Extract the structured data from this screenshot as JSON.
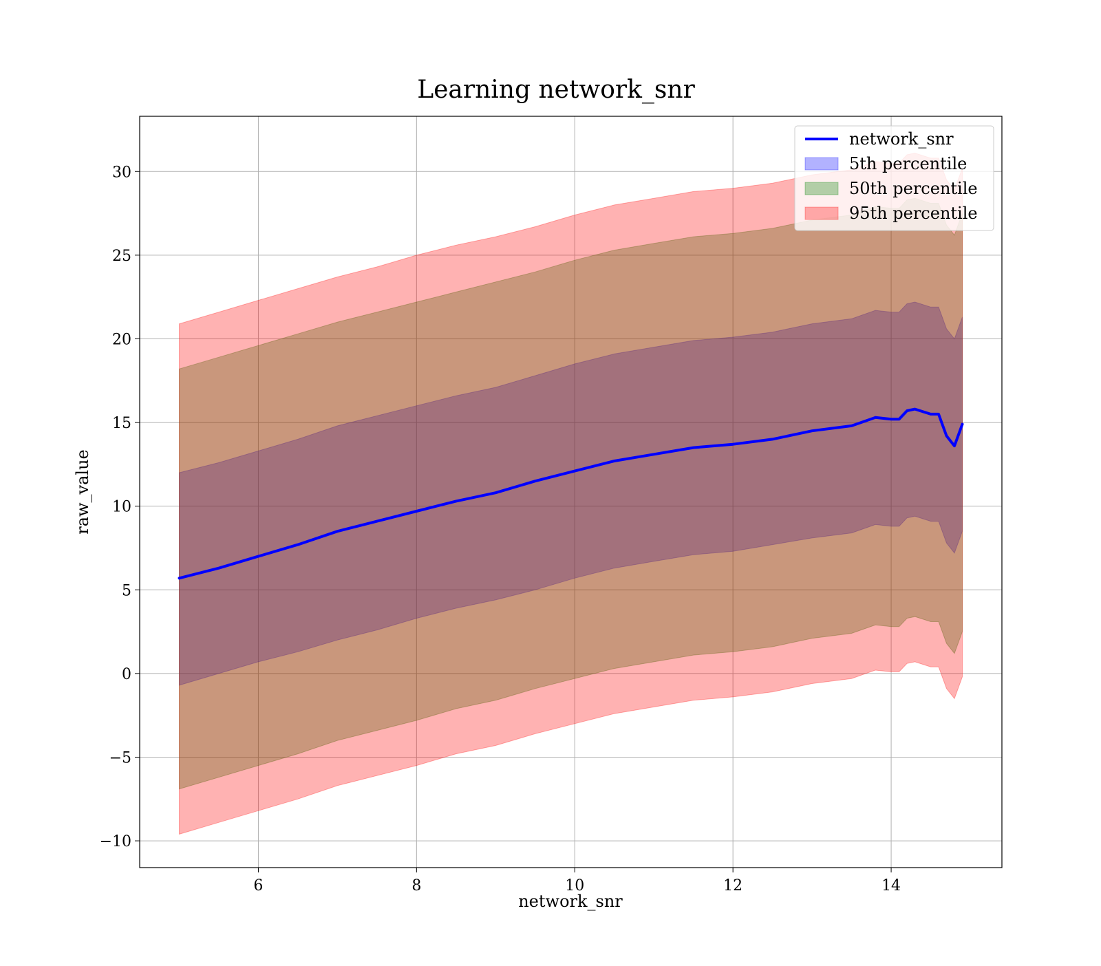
{
  "chart_data": {
    "type": "area",
    "title": "Learning network_snr",
    "xlabel": "network_snr",
    "ylabel": "raw_value",
    "xlim": [
      4.5,
      15.4
    ],
    "ylim": [
      -11.6,
      33.3
    ],
    "xticks": [
      6,
      8,
      10,
      12,
      14
    ],
    "yticks": [
      -10,
      -5,
      0,
      5,
      10,
      15,
      20,
      25,
      30
    ],
    "ytick_labels": [
      "−10",
      "−5",
      "0",
      "5",
      "10",
      "15",
      "20",
      "25",
      "30"
    ],
    "grid": true,
    "legend_position": "top-right",
    "x": [
      5.0,
      5.5,
      6.0,
      6.5,
      7.0,
      7.5,
      8.0,
      8.5,
      9.0,
      9.5,
      10.0,
      10.5,
      11.0,
      11.5,
      12.0,
      12.5,
      13.0,
      13.5,
      13.8,
      14.0,
      14.1,
      14.2,
      14.3,
      14.5,
      14.6,
      14.7,
      14.8,
      14.9
    ],
    "series": [
      {
        "name": "network_snr",
        "kind": "line",
        "color": "#0000ff",
        "values": [
          5.7,
          6.3,
          7.0,
          7.7,
          8.5,
          9.1,
          9.7,
          10.3,
          10.8,
          11.5,
          12.1,
          12.7,
          13.1,
          13.5,
          13.7,
          14.0,
          14.5,
          14.8,
          15.3,
          15.2,
          15.2,
          15.7,
          15.8,
          15.5,
          15.5,
          14.2,
          13.6,
          14.9
        ]
      },
      {
        "name": "5th percentile",
        "kind": "band",
        "color": "#0000ff",
        "opacity": 0.3,
        "lower": [
          -0.7,
          0.0,
          0.7,
          1.3,
          2.0,
          2.6,
          3.3,
          3.9,
          4.4,
          5.0,
          5.7,
          6.3,
          6.7,
          7.1,
          7.3,
          7.7,
          8.1,
          8.4,
          8.9,
          8.8,
          8.8,
          9.3,
          9.4,
          9.1,
          9.1,
          7.8,
          7.2,
          8.5
        ],
        "upper": [
          12.0,
          12.6,
          13.3,
          14.0,
          14.8,
          15.4,
          16.0,
          16.6,
          17.1,
          17.8,
          18.5,
          19.1,
          19.5,
          19.9,
          20.1,
          20.4,
          20.9,
          21.2,
          21.7,
          21.6,
          21.6,
          22.1,
          22.2,
          21.9,
          21.9,
          20.6,
          20.0,
          21.3
        ]
      },
      {
        "name": "50th percentile",
        "kind": "band",
        "color": "#008000",
        "opacity": 0.3,
        "lower": [
          -6.9,
          -6.2,
          -5.5,
          -4.8,
          -4.0,
          -3.4,
          -2.8,
          -2.1,
          -1.6,
          -0.9,
          -0.3,
          0.3,
          0.7,
          1.1,
          1.3,
          1.6,
          2.1,
          2.4,
          2.9,
          2.8,
          2.8,
          3.3,
          3.4,
          3.1,
          3.1,
          1.8,
          1.2,
          2.5
        ],
        "upper": [
          18.2,
          18.9,
          19.6,
          20.3,
          21.0,
          21.6,
          22.2,
          22.8,
          23.4,
          24.0,
          24.7,
          25.3,
          25.7,
          26.1,
          26.3,
          26.6,
          27.1,
          27.4,
          27.9,
          27.8,
          27.8,
          28.3,
          28.4,
          28.1,
          28.1,
          26.8,
          26.2,
          27.5
        ]
      },
      {
        "name": "95th percentile",
        "kind": "band",
        "color": "#ff0000",
        "opacity": 0.3,
        "lower": [
          -9.6,
          -8.9,
          -8.2,
          -7.5,
          -6.7,
          -6.1,
          -5.5,
          -4.8,
          -4.3,
          -3.6,
          -3.0,
          -2.4,
          -2.0,
          -1.6,
          -1.4,
          -1.1,
          -0.6,
          -0.3,
          0.2,
          0.1,
          0.1,
          0.6,
          0.7,
          0.4,
          0.4,
          -0.9,
          -1.5,
          -0.2
        ],
        "upper": [
          20.9,
          21.6,
          22.3,
          23.0,
          23.7,
          24.3,
          25.0,
          25.6,
          26.1,
          26.7,
          27.4,
          28.0,
          28.4,
          28.8,
          29.0,
          29.3,
          29.8,
          30.1,
          30.6,
          30.5,
          30.5,
          31.0,
          31.1,
          30.8,
          30.8,
          29.5,
          28.9,
          30.2
        ]
      }
    ]
  }
}
